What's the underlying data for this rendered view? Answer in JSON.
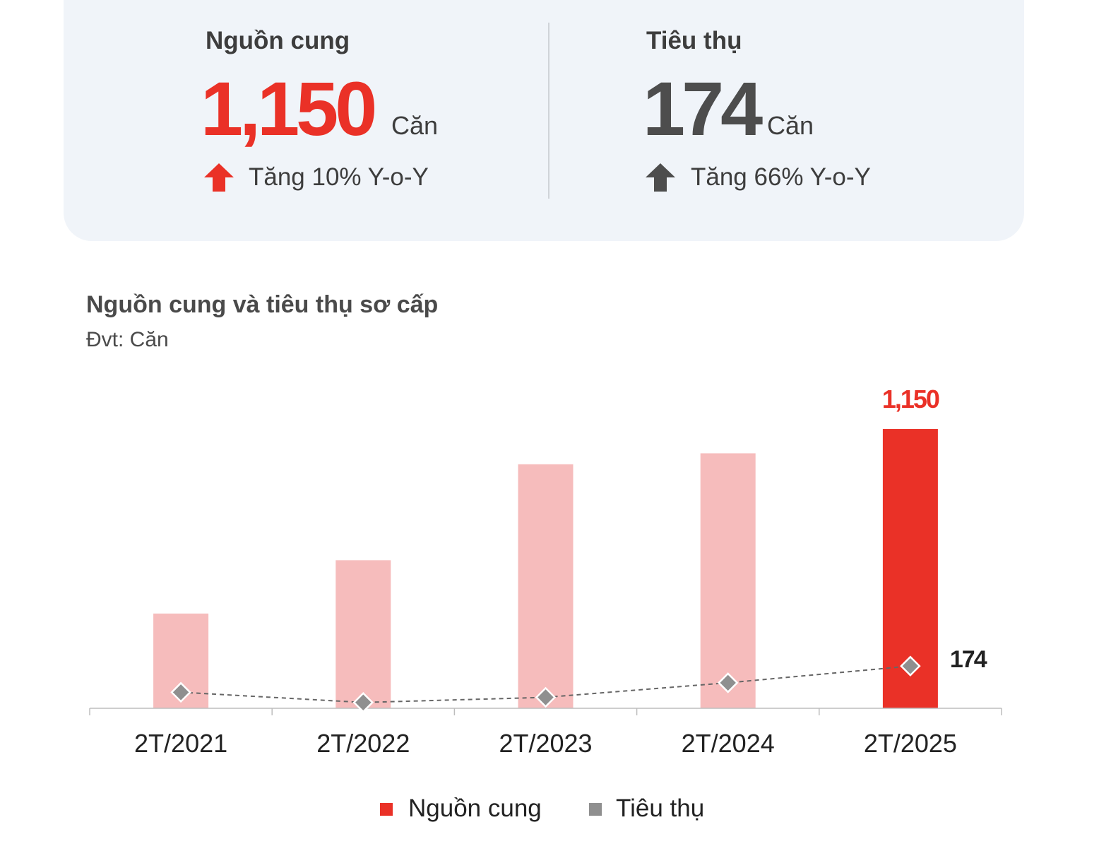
{
  "summary": {
    "supply": {
      "label": "Nguồn cung",
      "value": "1,150",
      "unit": "Căn",
      "change": "Tăng 10% Y-o-Y",
      "icon": "arrow-up-icon",
      "color": "#ea3127"
    },
    "absorption": {
      "label": "Tiêu thụ",
      "value": "174",
      "unit": "Căn",
      "change": "Tăng 66% Y-o-Y",
      "icon": "arrow-up-icon",
      "color": "#4d4d4d"
    }
  },
  "chart_data": {
    "type": "bar",
    "title": "Nguồn cung và tiêu thụ sơ cấp",
    "subtitle": "Đvt: Căn",
    "categories": [
      "2T/2021",
      "2T/2022",
      "2T/2023",
      "2T/2024",
      "2T/2025"
    ],
    "series": [
      {
        "name": "Nguồn cung",
        "type": "bar",
        "values": [
          390,
          610,
          1005,
          1050,
          1150
        ],
        "colors": [
          "#f6bcbc",
          "#f6bcbc",
          "#f6bcbc",
          "#f6bcbc",
          "#ea3127"
        ],
        "data_labels": [
          "",
          "",
          "",
          "",
          "1,150"
        ]
      },
      {
        "name": "Tiêu thụ",
        "type": "line",
        "style": "dashed",
        "marker": "diamond",
        "color": "#8f8f8f",
        "values": [
          66,
          24,
          45,
          105,
          174
        ],
        "data_labels": [
          "",
          "",
          "",
          "",
          "174"
        ]
      }
    ],
    "ylim": [
      0,
      1150
    ],
    "xlabel": "",
    "ylabel": "",
    "grid": false,
    "legend_position": "bottom",
    "legend": [
      {
        "label": "Nguồn cung",
        "color": "#ea3127"
      },
      {
        "label": "Tiêu thụ",
        "color": "#8f8f8f"
      }
    ]
  }
}
